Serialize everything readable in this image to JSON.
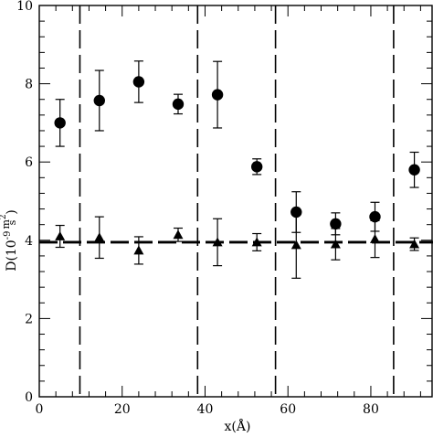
{
  "chart_data": {
    "type": "scatter",
    "xlabel": "x(Å)",
    "ylabel": {
      "prefix": "D(10",
      "exponent": "-9",
      "numerator": "m",
      "numerator_exp": "2",
      "denominator": "s",
      "suffix": ")"
    },
    "xlim": [
      0,
      95
    ],
    "ylim": [
      0,
      10
    ],
    "x_ticks": [
      0,
      20,
      40,
      60,
      80
    ],
    "y_ticks": [
      0,
      2,
      4,
      6,
      8,
      10
    ],
    "series": [
      {
        "marker": "circle",
        "points": [
          {
            "x": 5,
            "y": 7.0,
            "err": 0.6
          },
          {
            "x": 14.5,
            "y": 7.57,
            "err": 0.77
          },
          {
            "x": 24,
            "y": 8.05,
            "err": 0.53
          },
          {
            "x": 33.5,
            "y": 7.48,
            "err": 0.25
          },
          {
            "x": 43,
            "y": 7.72,
            "err": 0.85
          },
          {
            "x": 52.5,
            "y": 5.88,
            "err": 0.2
          },
          {
            "x": 62,
            "y": 4.72,
            "err": 0.52
          },
          {
            "x": 71.5,
            "y": 4.42,
            "err": 0.28
          },
          {
            "x": 81,
            "y": 4.6,
            "err": 0.37
          },
          {
            "x": 90.5,
            "y": 5.8,
            "err": 0.45
          }
        ]
      },
      {
        "marker": "triangle",
        "points": [
          {
            "x": 5,
            "y": 4.1,
            "err": 0.28
          },
          {
            "x": 14.5,
            "y": 4.07,
            "err": 0.53
          },
          {
            "x": 24,
            "y": 3.74,
            "err": 0.35
          },
          {
            "x": 33.5,
            "y": 4.14,
            "err": 0.17
          },
          {
            "x": 43,
            "y": 3.95,
            "err": 0.6
          },
          {
            "x": 52.5,
            "y": 3.95,
            "err": 0.22
          },
          {
            "x": 62,
            "y": 3.88,
            "err": 0.85
          },
          {
            "x": 71.5,
            "y": 3.9,
            "err": 0.4
          },
          {
            "x": 81,
            "y": 4.03,
            "err": 0.47
          },
          {
            "x": 90.5,
            "y": 3.9,
            "err": 0.16
          }
        ]
      }
    ],
    "reference_line_y": 3.95,
    "vertical_dividers_x": [
      9.8,
      38.2,
      57.0,
      85.5
    ],
    "grid": false,
    "legend": "none"
  }
}
